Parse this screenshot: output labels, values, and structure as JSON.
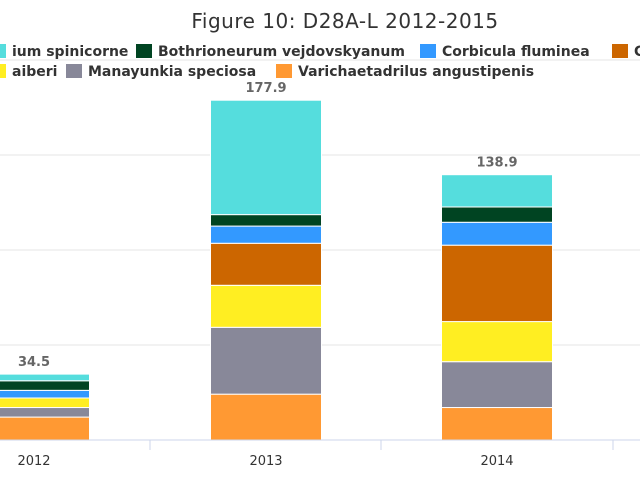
{
  "chart_data": {
    "type": "bar",
    "stacked": true,
    "title": "Figure 10: D28A-L 2012-2015",
    "categories": [
      "2012",
      "2013",
      "2014"
    ],
    "totals": [
      "34.5",
      "177.9",
      "138.9"
    ],
    "ylim": [
      0,
      180
    ],
    "grid": true,
    "legend_position": "top",
    "series": [
      {
        "name": "Varichaetadrilus angustipenis",
        "color": "#FF9933",
        "values": [
          12,
          24,
          17
        ]
      },
      {
        "name": "Manayunkia speciosa",
        "color": "#888899",
        "values": [
          5,
          35,
          24
        ]
      },
      {
        "name": "",
        "color": "#FFEE22",
        "values": [
          5,
          22,
          21
        ]
      },
      {
        "name": "",
        "color": "#CC6600",
        "values": [
          0,
          22,
          40
        ]
      },
      {
        "name": "Corbicula fluminea",
        "color": "#3399FF",
        "values": [
          4,
          9,
          12
        ]
      },
      {
        "name": "Bothrioneurum vejdovskyanum",
        "color": "#004422",
        "values": [
          5,
          6,
          8
        ]
      },
      {
        "name": "",
        "color": "#55DDDD",
        "values": [
          3.5,
          59.9,
          16.9
        ]
      }
    ],
    "legend_items": [
      {
        "label": "ium spinicorne",
        "color": "#55DDDD"
      },
      {
        "label": "Bothrioneurum vejdovskyanum",
        "color": "#004422"
      },
      {
        "label": "Corbicula fluminea",
        "color": "#3399FF"
      },
      {
        "label": "C",
        "color": "#CC6600"
      },
      {
        "label": "aiberi",
        "color": "#FFEE22"
      },
      {
        "label": "Manayunkia speciosa",
        "color": "#888899"
      },
      {
        "label": "Varichaetadrilus angustipenis",
        "color": "#FF9933"
      }
    ]
  }
}
